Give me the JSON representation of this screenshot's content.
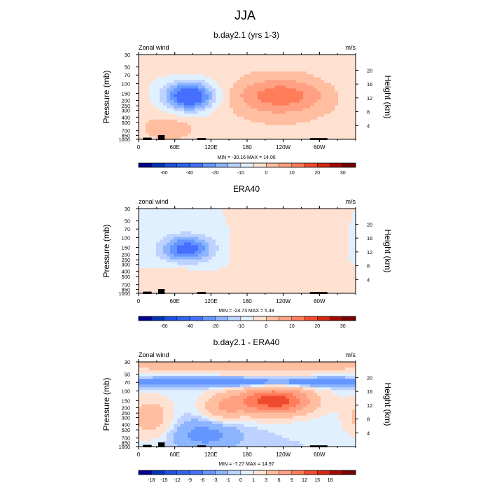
{
  "figure": {
    "title": "JJA"
  },
  "panels": [
    {
      "id": "model",
      "title": "b.day2.1 (yrs 1-3)",
      "left_label": "Zonal wind",
      "right_label": "m/s",
      "stats": "MIN = -30.16  MAX =  14.06"
    },
    {
      "id": "era40",
      "title": "ERA40",
      "left_label": "zonal wind",
      "right_label": "m/s",
      "stats": "MIN = -24.73  MAX =   5.48"
    },
    {
      "id": "diff",
      "title": "b.day2.1 - ERA40",
      "left_label": "Zonal wind",
      "right_label": "m/s",
      "stats": "MIN =  -7.27  MAX = 14.97"
    }
  ],
  "chart_data": [
    {
      "type": "heatmap",
      "title": "b.day2.1 (yrs 1-3)",
      "xlabel": "",
      "ylabel": "Pressure (mb)",
      "y2label": "Height (km)",
      "x_ticks": [
        "0",
        "60E",
        "120E",
        "180",
        "120W",
        "60W"
      ],
      "y_ticks": [
        "30",
        "50",
        "70",
        "100",
        "150",
        "200",
        "250",
        "300",
        "400",
        "500",
        "700",
        "850",
        "1000"
      ],
      "y2_ticks": [
        "20",
        "16",
        "12",
        "8",
        "4"
      ],
      "units": "m/s",
      "min": -30.16,
      "max": 14.06,
      "colorbar_labels": [
        "-60",
        "-40",
        "-20",
        "-10",
        "0",
        "10",
        "20",
        "30"
      ],
      "colorbar_levels": [
        -70,
        -60,
        -50,
        -40,
        -30,
        -20,
        -15,
        -10,
        -5,
        0,
        5,
        10,
        15,
        20,
        25,
        30,
        35
      ],
      "features": [
        {
          "lon": 85,
          "p": 170,
          "value": -30,
          "dlon": 28,
          "dlogp": 0.18,
          "desc": "easterly jet core"
        },
        {
          "lon": 235,
          "p": 150,
          "value": 14,
          "dlon": 55,
          "dlogp": 0.22,
          "desc": "westerly maximum"
        },
        {
          "lon": 235,
          "p": 300,
          "value": 6,
          "dlon": 80,
          "dlogp": 0.35
        },
        {
          "lon": 50,
          "p": 650,
          "value": 8,
          "dlon": 35,
          "dlogp": 0.2
        },
        {
          "lon": 180,
          "p": 60,
          "value": 2,
          "dlon": 180,
          "dlogp": 0.1
        }
      ]
    },
    {
      "type": "heatmap",
      "title": "ERA40",
      "xlabel": "",
      "ylabel": "Pressure (mb)",
      "y2label": "Height (km)",
      "x_ticks": [
        "0",
        "60E",
        "120E",
        "180",
        "120W",
        "60W"
      ],
      "y_ticks": [
        "30",
        "50",
        "70",
        "100",
        "150",
        "200",
        "250",
        "300",
        "400",
        "500",
        "700",
        "850",
        "1000"
      ],
      "y2_ticks": [
        "20",
        "16",
        "12",
        "8",
        "4"
      ],
      "units": "m/s",
      "min": -24.73,
      "max": 5.48,
      "colorbar_labels": [
        "-60",
        "-40",
        "-20",
        "-10",
        "0",
        "10",
        "20",
        "30"
      ],
      "colorbar_levels": [
        -70,
        -60,
        -50,
        -40,
        -30,
        -20,
        -15,
        -10,
        -5,
        0,
        5,
        10,
        15,
        20,
        25,
        30,
        35
      ],
      "features": [
        {
          "lon": 80,
          "p": 160,
          "value": -24,
          "dlon": 30,
          "dlogp": 0.17,
          "desc": "easterly jet core"
        },
        {
          "lon": 230,
          "p": 170,
          "value": 5,
          "dlon": 45,
          "dlogp": 0.2
        },
        {
          "lon": 75,
          "p": 650,
          "value": 4,
          "dlon": 30,
          "dlogp": 0.25
        }
      ]
    },
    {
      "type": "heatmap",
      "title": "b.day2.1 - ERA40",
      "xlabel": "",
      "ylabel": "Pressure (mb)",
      "y2label": "Height (km)",
      "x_ticks": [
        "0",
        "60E",
        "120E",
        "180",
        "120W",
        "60W"
      ],
      "y_ticks": [
        "30",
        "50",
        "70",
        "100",
        "150",
        "200",
        "250",
        "300",
        "400",
        "500",
        "700",
        "850",
        "1000"
      ],
      "y2_ticks": [
        "20",
        "16",
        "12",
        "8",
        "4"
      ],
      "units": "m/s",
      "min": -7.27,
      "max": 14.97,
      "colorbar_labels": [
        "-18",
        "-15",
        "-12",
        "-9",
        "-6",
        "-3",
        "-1",
        "0",
        "1",
        "3",
        "6",
        "9",
        "12",
        "15",
        "18"
      ],
      "colorbar_levels": [
        -21,
        -18,
        -15,
        -12,
        -9,
        -6,
        -3,
        -1,
        0,
        1,
        3,
        6,
        9,
        12,
        15,
        18,
        21
      ],
      "features": [
        {
          "lon": 225,
          "p": 150,
          "value": 14,
          "dlon": 45,
          "dlogp": 0.18,
          "desc": "positive difference maximum"
        },
        {
          "lon": 180,
          "p": 35,
          "value": 5,
          "dlon": 200,
          "dlogp": 0.1
        },
        {
          "lon": 180,
          "p": 70,
          "value": -6,
          "dlon": 200,
          "dlogp": 0.06
        },
        {
          "lon": 110,
          "p": 600,
          "value": -4,
          "dlon": 40,
          "dlogp": 0.2
        },
        {
          "lon": 20,
          "p": 300,
          "value": 5,
          "dlon": 25,
          "dlogp": 0.25
        },
        {
          "lon": 140,
          "p": 200,
          "value": 5,
          "dlon": 25,
          "dlogp": 0.18
        }
      ]
    }
  ],
  "colors": {
    "scale": [
      "#00008c",
      "#0032b4",
      "#1e50dc",
      "#2d64eb",
      "#466eff",
      "#6496ff",
      "#8cb4ff",
      "#bed2ff",
      "#e1f0ff",
      "#ffe1d2",
      "#ffbea0",
      "#ffa082",
      "#ff7d5a",
      "#f04b2d",
      "#d22814",
      "#a00a00",
      "#780000"
    ]
  }
}
